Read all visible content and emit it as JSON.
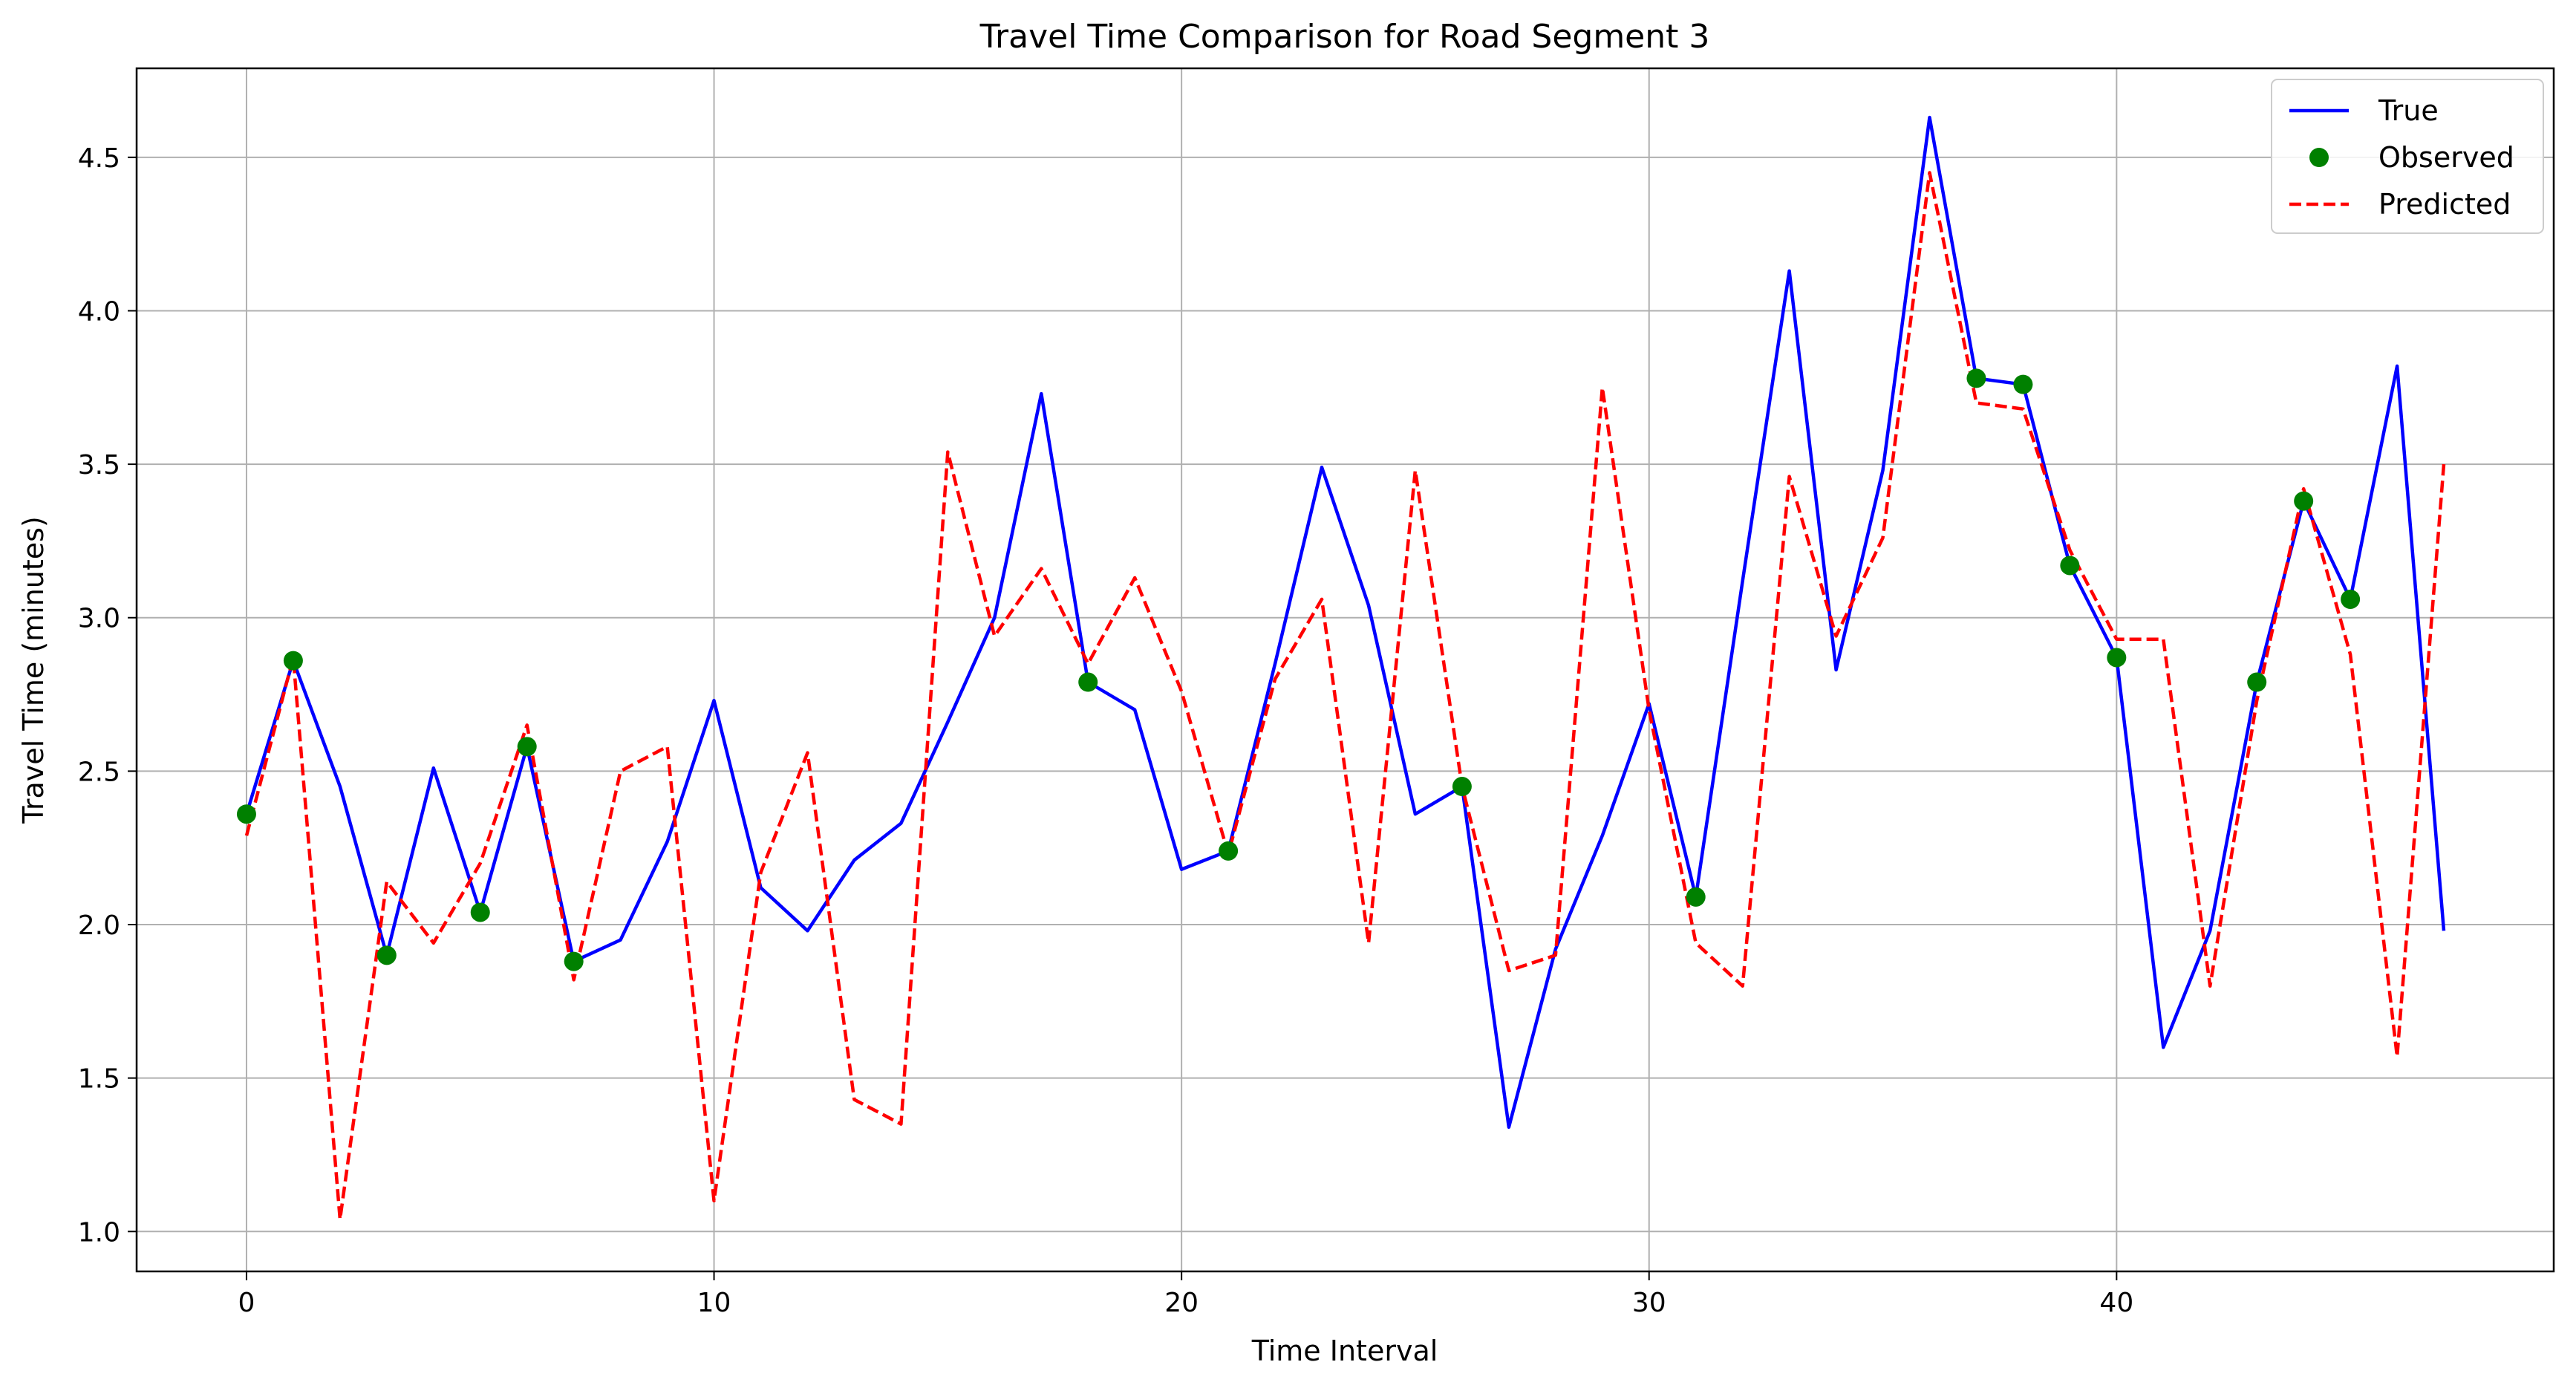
{
  "chart_data": {
    "type": "line",
    "title": "Travel Time Comparison for Road Segment 3",
    "xlabel": "Time Interval",
    "ylabel": "Travel Time (minutes)",
    "xlim": [
      -2.35,
      49.35
    ],
    "ylim": [
      0.87,
      4.79
    ],
    "xticks": [
      0,
      10,
      20,
      30,
      40
    ],
    "yticks": [
      1.0,
      1.5,
      2.0,
      2.5,
      3.0,
      3.5,
      4.0,
      4.5
    ],
    "xtick_labels": [
      "0",
      "10",
      "20",
      "30",
      "40"
    ],
    "ytick_labels": [
      "1.0",
      "1.5",
      "2.0",
      "2.5",
      "3.0",
      "3.5",
      "4.0",
      "4.5"
    ],
    "grid": true,
    "legend_position": "top-right",
    "legend": [
      {
        "label": "True",
        "kind": "line",
        "color": "#0000ff"
      },
      {
        "label": "Observed",
        "kind": "marker",
        "color": "#008000"
      },
      {
        "label": "Predicted",
        "kind": "dashed",
        "color": "#ff0000"
      }
    ],
    "series": [
      {
        "name": "True",
        "kind": "line",
        "color": "#0000ff",
        "x": [
          0,
          1,
          2,
          3,
          4,
          5,
          6,
          7,
          8,
          9,
          10,
          11,
          12,
          13,
          14,
          15,
          16,
          17,
          18,
          19,
          20,
          21,
          22,
          23,
          24,
          25,
          26,
          27,
          28,
          29,
          30,
          31,
          32,
          33,
          34,
          35,
          36,
          37,
          38,
          39,
          40,
          41,
          42,
          43,
          44,
          45,
          46,
          47
        ],
        "y": [
          2.36,
          2.86,
          2.45,
          1.9,
          2.51,
          2.04,
          2.58,
          1.88,
          1.95,
          2.27,
          2.73,
          2.12,
          1.98,
          2.21,
          2.33,
          2.66,
          3.0,
          3.73,
          2.79,
          2.7,
          2.18,
          2.24,
          2.85,
          3.49,
          3.04,
          2.36,
          2.45,
          1.34,
          1.92,
          2.29,
          2.72,
          2.09,
          3.12,
          4.13,
          2.83,
          3.48,
          4.63,
          3.78,
          3.76,
          3.17,
          2.87,
          1.6,
          1.98,
          2.79,
          3.38,
          3.06,
          3.82,
          1.98
        ]
      },
      {
        "name": "Observed",
        "kind": "scatter",
        "color": "#008000",
        "x": [
          0,
          1,
          3,
          5,
          6,
          7,
          18,
          21,
          26,
          31,
          37,
          38,
          39,
          40,
          43,
          44,
          45
        ],
        "y": [
          2.36,
          2.86,
          1.9,
          2.04,
          2.58,
          1.88,
          2.79,
          2.24,
          2.45,
          2.09,
          3.78,
          3.76,
          3.17,
          2.87,
          2.79,
          3.38,
          3.06
        ]
      },
      {
        "name": "Predicted",
        "kind": "dashed",
        "color": "#ff0000",
        "x": [
          0,
          1,
          2,
          3,
          4,
          5,
          6,
          7,
          8,
          9,
          10,
          11,
          12,
          13,
          14,
          15,
          16,
          17,
          18,
          19,
          20,
          21,
          22,
          23,
          24,
          25,
          26,
          27,
          28,
          29,
          30,
          31,
          32,
          33,
          34,
          35,
          36,
          37,
          38,
          39,
          40,
          41,
          42,
          43,
          44,
          45,
          46,
          47
        ],
        "y": [
          2.29,
          2.87,
          1.04,
          2.14,
          1.94,
          2.2,
          2.65,
          1.82,
          2.5,
          2.58,
          1.1,
          2.17,
          2.56,
          1.43,
          1.35,
          3.54,
          2.94,
          3.16,
          2.85,
          3.13,
          2.76,
          2.23,
          2.8,
          3.06,
          1.94,
          3.48,
          2.45,
          1.85,
          1.9,
          3.75,
          2.7,
          1.94,
          1.8,
          3.46,
          2.94,
          3.26,
          4.45,
          3.7,
          3.68,
          3.22,
          2.93,
          2.93,
          1.8,
          2.73,
          3.42,
          2.88,
          1.57,
          3.5
        ]
      }
    ]
  }
}
